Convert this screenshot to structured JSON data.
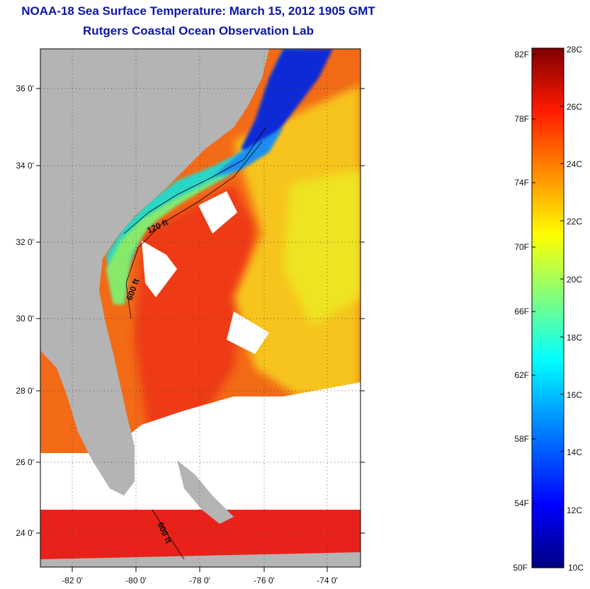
{
  "title": "NOAA-18 Sea Surface Temperature:  March 15, 2012 1905 GMT",
  "subtitle": "Rutgers Coastal Ocean Observation Lab",
  "lat_labels": [
    "36 0'",
    "34 0'",
    "32 0'",
    "30 0'",
    "28 0'",
    "26 0'",
    "24 0'"
  ],
  "lon_labels": [
    "-82 0'",
    "-80 0'",
    "-78 0'",
    "-76 0'",
    "-74 0'"
  ],
  "contour_labels": [
    "120 ft",
    "600 ft",
    "600 ft"
  ],
  "colorbar": {
    "fahrenheit": [
      "82F",
      "78F",
      "74F",
      "70F",
      "66F",
      "62F",
      "58F",
      "54F",
      "50F"
    ],
    "celsius": [
      "28C",
      "26C",
      "24C",
      "22C",
      "20C",
      "18C",
      "16C",
      "14C",
      "12C",
      "10C"
    ],
    "colors": [
      "#00007f",
      "#0000ff",
      "#007fff",
      "#00ffff",
      "#7fff7f",
      "#ffff00",
      "#ff7f00",
      "#ff0000",
      "#7f0000"
    ]
  },
  "colors": {
    "land": "#b4b4b4",
    "title": "#0b17a8",
    "cloud": "#ffffff"
  }
}
